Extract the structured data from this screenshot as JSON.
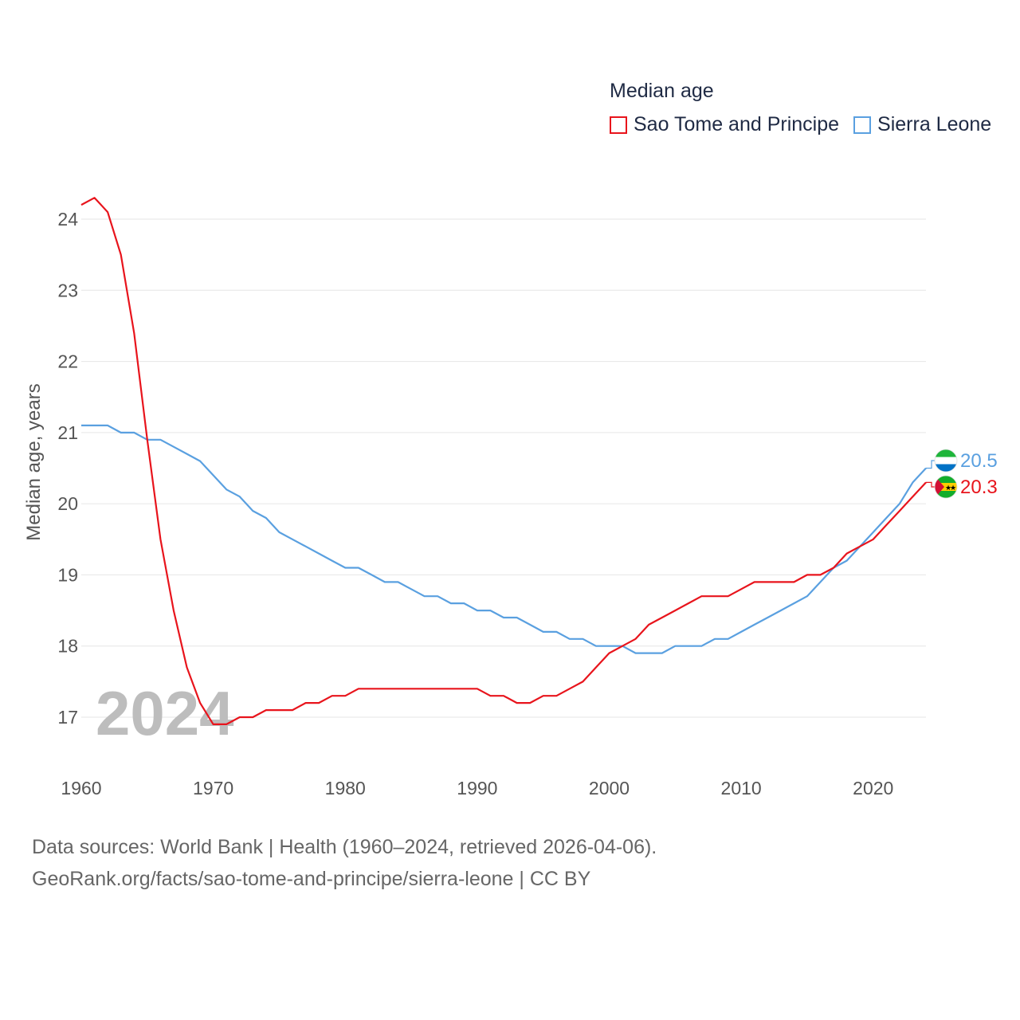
{
  "chart_data": {
    "type": "line",
    "legend_title": "Median age",
    "ylabel": "Median age, years",
    "xlabel": "",
    "xlim": [
      1960,
      2024
    ],
    "ylim": [
      16.5,
      24.7
    ],
    "x_ticks": [
      1960,
      1970,
      1980,
      1990,
      2000,
      2010,
      2020
    ],
    "y_ticks": [
      17,
      18,
      19,
      20,
      21,
      22,
      23,
      24
    ],
    "watermark_year": "2024",
    "x": [
      1960,
      1961,
      1962,
      1963,
      1964,
      1965,
      1966,
      1967,
      1968,
      1969,
      1970,
      1971,
      1972,
      1973,
      1974,
      1975,
      1976,
      1977,
      1978,
      1979,
      1980,
      1981,
      1982,
      1983,
      1984,
      1985,
      1986,
      1987,
      1988,
      1989,
      1990,
      1991,
      1992,
      1993,
      1994,
      1995,
      1996,
      1997,
      1998,
      1999,
      2000,
      2001,
      2002,
      2003,
      2004,
      2005,
      2006,
      2007,
      2008,
      2009,
      2010,
      2011,
      2012,
      2013,
      2014,
      2015,
      2016,
      2017,
      2018,
      2019,
      2020,
      2021,
      2022,
      2023,
      2024
    ],
    "series": [
      {
        "name": "Sao Tome and Principe",
        "color": "#e8141c",
        "end_label": "20.3",
        "values": [
          24.2,
          24.3,
          24.1,
          23.5,
          22.4,
          20.9,
          19.5,
          18.5,
          17.7,
          17.2,
          16.9,
          16.9,
          17.0,
          17.0,
          17.1,
          17.1,
          17.1,
          17.2,
          17.2,
          17.3,
          17.3,
          17.4,
          17.4,
          17.4,
          17.4,
          17.4,
          17.4,
          17.4,
          17.4,
          17.4,
          17.4,
          17.3,
          17.3,
          17.2,
          17.2,
          17.3,
          17.3,
          17.4,
          17.5,
          17.7,
          17.9,
          18.0,
          18.1,
          18.3,
          18.4,
          18.5,
          18.6,
          18.7,
          18.7,
          18.7,
          18.8,
          18.9,
          18.9,
          18.9,
          18.9,
          19.0,
          19.0,
          19.1,
          19.3,
          19.4,
          19.5,
          19.7,
          19.9,
          20.1,
          20.3
        ]
      },
      {
        "name": "Sierra Leone",
        "color": "#5aa0e0",
        "end_label": "20.5",
        "values": [
          21.1,
          21.1,
          21.1,
          21.0,
          21.0,
          20.9,
          20.9,
          20.8,
          20.7,
          20.6,
          20.4,
          20.2,
          20.1,
          19.9,
          19.8,
          19.6,
          19.5,
          19.4,
          19.3,
          19.2,
          19.1,
          19.1,
          19.0,
          18.9,
          18.9,
          18.8,
          18.7,
          18.7,
          18.6,
          18.6,
          18.5,
          18.5,
          18.4,
          18.4,
          18.3,
          18.2,
          18.2,
          18.1,
          18.1,
          18.0,
          18.0,
          18.0,
          17.9,
          17.9,
          17.9,
          18.0,
          18.0,
          18.0,
          18.1,
          18.1,
          18.2,
          18.3,
          18.4,
          18.5,
          18.6,
          18.7,
          18.9,
          19.1,
          19.2,
          19.4,
          19.6,
          19.8,
          20.0,
          20.3,
          20.5
        ]
      }
    ]
  },
  "source": {
    "line1": "Data sources: World Bank | Health (1960–2024, retrieved 2026-04-06).",
    "line2": "GeoRank.org/facts/sao-tome-and-principe/sierra-leone | CC BY"
  },
  "flags": {
    "sao_tome": "sao-tome-and-principe-flag-icon",
    "sierra_leone": "sierra-leone-flag-icon"
  }
}
